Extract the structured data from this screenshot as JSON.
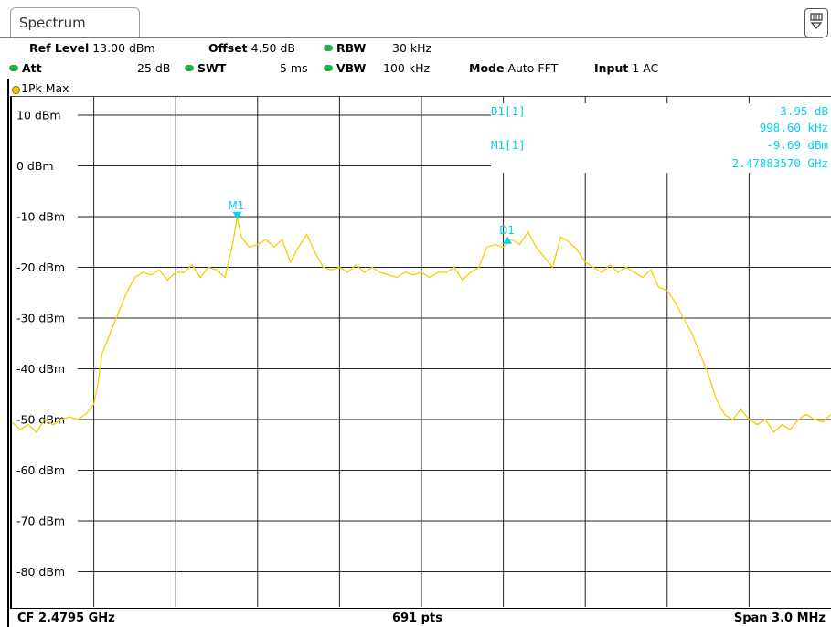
{
  "tab": {
    "title": "Spectrum"
  },
  "header": {
    "ref_level_label": "Ref Level",
    "ref_level_value": "13.00 dBm",
    "offset_label": "Offset",
    "offset_value": "4.50 dB",
    "rbw_label": "RBW",
    "rbw_value": "30 kHz",
    "att_label": "Att",
    "att_value": "25 dB",
    "swt_label": "SWT",
    "swt_value": "5 ms",
    "vbw_label": "VBW",
    "vbw_value": "100 kHz",
    "mode_label": "Mode",
    "mode_value": "Auto FFT",
    "input_label": "Input",
    "input_value": "1 AC"
  },
  "trace": {
    "label": "1Pk Max",
    "color": "#f2d000"
  },
  "markers": {
    "d1_label": "D1[1]",
    "d1_value1": "-3.95 dB",
    "d1_value2": "998.60 kHz",
    "m1_label": "M1[1]",
    "m1_value1": "-9.69 dBm",
    "m1_value2": "2.47883570 GHz",
    "color": "#00d4e6"
  },
  "footer": {
    "cf": "CF 2.4795 GHz",
    "pts": "691 pts",
    "span": "Span 3.0 MHz"
  },
  "chart_data": {
    "type": "line",
    "ylim": [
      -90,
      10
    ],
    "xlim": [
      0,
      10
    ],
    "yticks": [
      {
        "v": 10,
        "label": "10 dBm"
      },
      {
        "v": 0,
        "label": "0 dBm"
      },
      {
        "v": -10,
        "label": "-10 dBm"
      },
      {
        "v": -20,
        "label": "-20 dBm"
      },
      {
        "v": -30,
        "label": "-30 dBm"
      },
      {
        "v": -40,
        "label": "-40 dBm"
      },
      {
        "v": -50,
        "label": "-50 dBm"
      },
      {
        "v": -60,
        "label": "-60 dBm"
      },
      {
        "v": -70,
        "label": "-70 dBm"
      },
      {
        "v": -80,
        "label": "-80 dBm"
      }
    ],
    "grid": true,
    "series": [
      {
        "x": [
          0,
          0.1,
          0.2,
          0.3,
          0.4,
          0.5,
          0.6,
          0.7,
          0.8,
          0.9,
          1.0,
          1.05,
          1.1,
          1.2,
          1.3,
          1.4,
          1.5,
          1.6,
          1.7,
          1.8,
          1.9,
          2.0,
          2.1,
          2.2,
          2.3,
          2.4,
          2.5,
          2.6,
          2.7,
          2.75,
          2.8,
          2.9,
          3.0,
          3.1,
          3.2,
          3.3,
          3.4,
          3.5,
          3.6,
          3.7,
          3.8,
          3.9,
          4.0,
          4.1,
          4.2,
          4.3,
          4.4,
          4.5,
          4.6,
          4.7,
          4.8,
          4.9,
          5.0,
          5.1,
          5.2,
          5.3,
          5.4,
          5.5,
          5.6,
          5.7,
          5.8,
          5.9,
          6.0,
          6.1,
          6.2,
          6.3,
          6.4,
          6.5,
          6.6,
          6.7,
          6.8,
          6.9,
          7.0,
          7.1,
          7.2,
          7.3,
          7.4,
          7.5,
          7.6,
          7.7,
          7.8,
          7.9,
          8.0,
          8.1,
          8.2,
          8.3,
          8.4,
          8.5,
          8.6,
          8.7,
          8.8,
          8.9,
          9.0,
          9.1,
          9.2,
          9.3,
          9.4,
          9.5,
          9.6,
          9.7,
          9.8,
          9.9,
          10.0
        ],
        "y": [
          -50.5,
          -52,
          -51,
          -52.5,
          -50,
          -51,
          -50,
          -49.5,
          -50,
          -49,
          -47,
          -43,
          -37,
          -33,
          -29,
          -25,
          -22,
          -21,
          -21.5,
          -20.5,
          -22.5,
          -21,
          -21,
          -19.5,
          -22,
          -20,
          -20.5,
          -22,
          -15,
          -10,
          -14,
          -16,
          -15.5,
          -14.5,
          -16,
          -14.5,
          -19,
          -16,
          -13.5,
          -17,
          -20,
          -20.5,
          -20,
          -21,
          -19.5,
          -21,
          -20,
          -21,
          -21.5,
          -22,
          -21,
          -21.5,
          -21,
          -22,
          -21,
          -21,
          -20,
          -22.5,
          -21,
          -20,
          -16,
          -15.5,
          -16,
          -14.5,
          -15.5,
          -13,
          -16,
          -18,
          -20,
          -14,
          -15,
          -16.5,
          -19,
          -20,
          -21,
          -19.5,
          -21,
          -20,
          -21,
          -22,
          -20.5,
          -24,
          -24.5,
          -27,
          -30,
          -33,
          -37,
          -41,
          -46,
          -49,
          -50,
          -48,
          -50,
          -51,
          -50,
          -52.5,
          -51,
          -52,
          -50,
          -49,
          -50,
          -50.5,
          -49
        ]
      }
    ],
    "vmarkers": [
      {
        "x": 2.75,
        "y": -10.5,
        "label": "M1"
      },
      {
        "x": 6.05,
        "y": -15,
        "label": "D1"
      }
    ]
  }
}
